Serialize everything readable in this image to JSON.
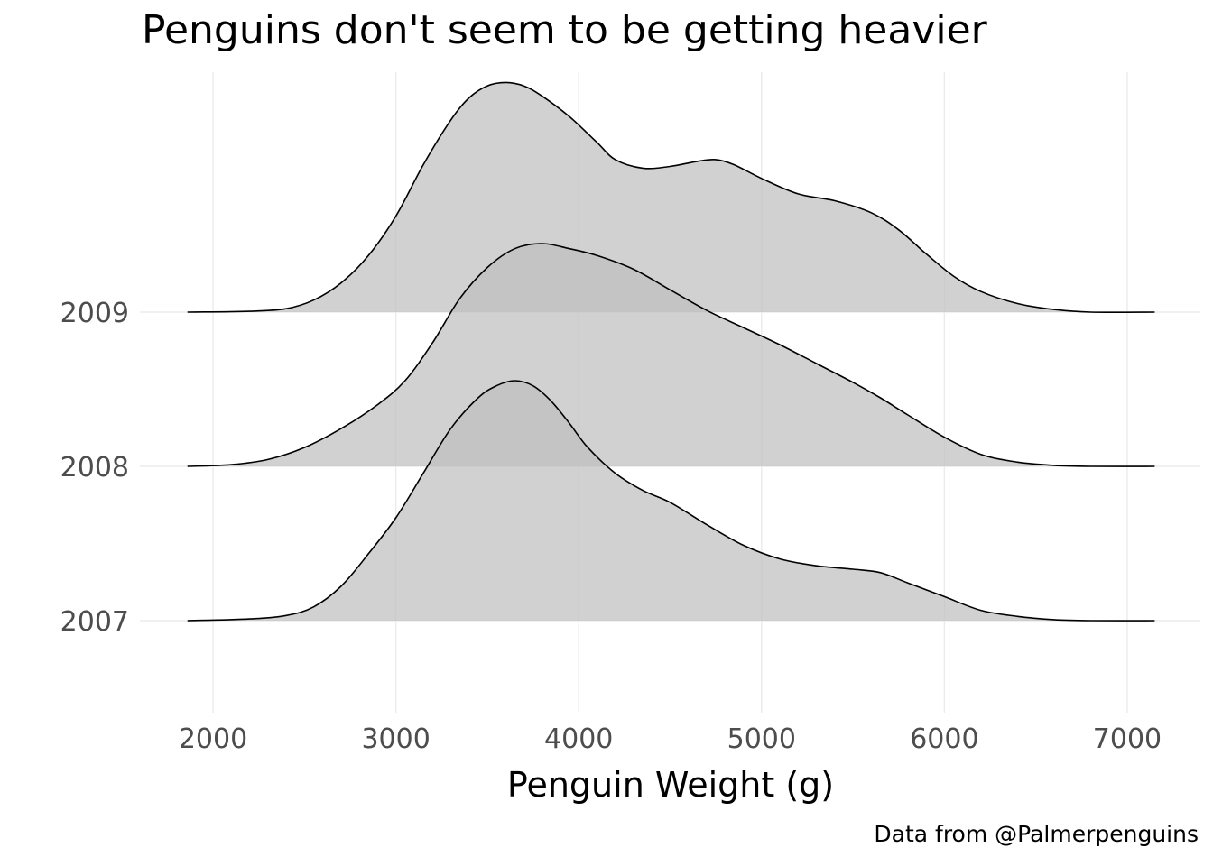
{
  "chart_data": {
    "type": "ridgeline",
    "title": "Penguins don't seem to be getting heavier",
    "xlabel": "Penguin Weight (g)",
    "ylabel": "",
    "caption": "Data from @Palmerpenguins",
    "xlim": [
      1600,
      7400
    ],
    "x_ticks": [
      2000,
      3000,
      4000,
      5000,
      6000,
      7000
    ],
    "categories": [
      "2007",
      "2008",
      "2009"
    ],
    "fill_color": "#bfbfbf",
    "line_color": "#000000",
    "grid": true,
    "legend": "none",
    "series": [
      {
        "name": "2007",
        "points": [
          [
            1860,
            0
          ],
          [
            2200,
            0.01
          ],
          [
            2400,
            0.03
          ],
          [
            2550,
            0.08
          ],
          [
            2700,
            0.2
          ],
          [
            2850,
            0.39
          ],
          [
            3000,
            0.6
          ],
          [
            3150,
            0.86
          ],
          [
            3300,
            1.12
          ],
          [
            3450,
            1.3
          ],
          [
            3550,
            1.37
          ],
          [
            3650,
            1.4
          ],
          [
            3750,
            1.37
          ],
          [
            3850,
            1.28
          ],
          [
            3950,
            1.15
          ],
          [
            4050,
            1.01
          ],
          [
            4200,
            0.86
          ],
          [
            4350,
            0.76
          ],
          [
            4500,
            0.69
          ],
          [
            4700,
            0.56
          ],
          [
            4900,
            0.44
          ],
          [
            5100,
            0.36
          ],
          [
            5300,
            0.32
          ],
          [
            5500,
            0.3
          ],
          [
            5650,
            0.28
          ],
          [
            5800,
            0.22
          ],
          [
            6000,
            0.14
          ],
          [
            6200,
            0.06
          ],
          [
            6400,
            0.025
          ],
          [
            6600,
            0.006
          ],
          [
            6800,
            0
          ],
          [
            7150,
            0
          ]
        ]
      },
      {
        "name": "2008",
        "points": [
          [
            1860,
            0
          ],
          [
            2100,
            0.01
          ],
          [
            2300,
            0.04
          ],
          [
            2500,
            0.11
          ],
          [
            2700,
            0.22
          ],
          [
            2900,
            0.36
          ],
          [
            3050,
            0.5
          ],
          [
            3200,
            0.72
          ],
          [
            3350,
            0.98
          ],
          [
            3500,
            1.16
          ],
          [
            3650,
            1.27
          ],
          [
            3800,
            1.3
          ],
          [
            3950,
            1.27
          ],
          [
            4100,
            1.23
          ],
          [
            4300,
            1.15
          ],
          [
            4500,
            1.03
          ],
          [
            4700,
            0.91
          ],
          [
            4900,
            0.81
          ],
          [
            5100,
            0.71
          ],
          [
            5300,
            0.6
          ],
          [
            5500,
            0.49
          ],
          [
            5650,
            0.4
          ],
          [
            5800,
            0.3
          ],
          [
            6000,
            0.17
          ],
          [
            6200,
            0.07
          ],
          [
            6400,
            0.025
          ],
          [
            6600,
            0.006
          ],
          [
            6800,
            0
          ],
          [
            7150,
            0
          ]
        ]
      },
      {
        "name": "2009",
        "points": [
          [
            1860,
            0
          ],
          [
            2200,
            0.005
          ],
          [
            2400,
            0.02
          ],
          [
            2550,
            0.07
          ],
          [
            2700,
            0.17
          ],
          [
            2850,
            0.33
          ],
          [
            3000,
            0.56
          ],
          [
            3150,
            0.86
          ],
          [
            3300,
            1.12
          ],
          [
            3400,
            1.25
          ],
          [
            3500,
            1.32
          ],
          [
            3600,
            1.34
          ],
          [
            3700,
            1.32
          ],
          [
            3800,
            1.26
          ],
          [
            3950,
            1.14
          ],
          [
            4100,
            0.99
          ],
          [
            4200,
            0.89
          ],
          [
            4350,
            0.84
          ],
          [
            4500,
            0.85
          ],
          [
            4650,
            0.88
          ],
          [
            4750,
            0.89
          ],
          [
            4850,
            0.86
          ],
          [
            5000,
            0.78
          ],
          [
            5200,
            0.69
          ],
          [
            5400,
            0.65
          ],
          [
            5600,
            0.58
          ],
          [
            5750,
            0.48
          ],
          [
            5900,
            0.34
          ],
          [
            6050,
            0.21
          ],
          [
            6200,
            0.12
          ],
          [
            6400,
            0.05
          ],
          [
            6600,
            0.015
          ],
          [
            6800,
            0
          ],
          [
            7150,
            0
          ]
        ]
      }
    ]
  }
}
